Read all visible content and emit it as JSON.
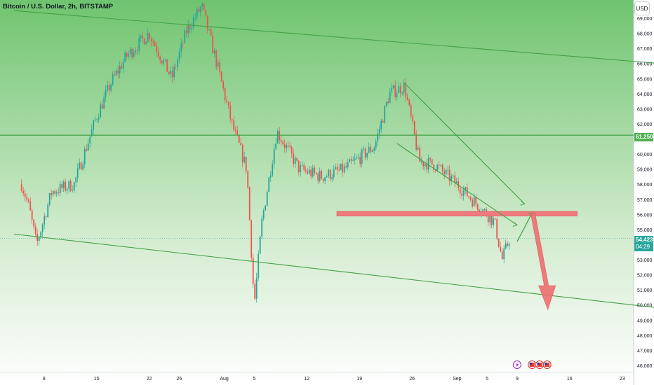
{
  "header": {
    "title": "Bitcoin / U.S. Dollar, 2h, BITSTAMP",
    "currency_button": "USD"
  },
  "price_tags": {
    "level": "61,250",
    "last_price": "54,423",
    "countdown": "04:29"
  },
  "colors": {
    "background_top": "#6fc46f",
    "background_bottom": "#ffffff",
    "up_candle": "#26a69a",
    "down_candle": "#ef5350",
    "trend_lines": "#43a047",
    "zone": "#ef7b80",
    "arrow": "#ef6f72"
  },
  "chart_data": {
    "type": "candlestick",
    "symbol": "Bitcoin / U.S. Dollar",
    "interval": "2h",
    "exchange": "BITSTAMP",
    "y_axis": {
      "position": "right",
      "range": [
        46000,
        70000
      ],
      "ticks": [
        "69,000",
        "68,000",
        "67,000",
        "66,000",
        "65,000",
        "64,000",
        "63,000",
        "62,000",
        "61,000",
        "60,000",
        "59,000",
        "58,000",
        "57,000",
        "56,000",
        "55,000",
        "54,000",
        "53,000",
        "52,000",
        "51,000",
        "50,000",
        "49,000",
        "48,000",
        "47,000",
        "46,000"
      ]
    },
    "x_axis": {
      "ticks": [
        "8",
        "15",
        "22",
        "26",
        "Aug",
        "5",
        "12",
        "19",
        "26",
        "Sep",
        "5",
        "9",
        "16",
        "23"
      ]
    },
    "price_path": [
      {
        "date": "2024-07-05",
        "close": 58000
      },
      {
        "date": "2024-07-06",
        "close": 56500
      },
      {
        "date": "2024-07-07",
        "close": 54000
      },
      {
        "date": "2024-07-09",
        "close": 57500
      },
      {
        "date": "2024-07-12",
        "close": 58000
      },
      {
        "date": "2024-07-15",
        "close": 62500
      },
      {
        "date": "2024-07-17",
        "close": 64800
      },
      {
        "date": "2024-07-19",
        "close": 66500
      },
      {
        "date": "2024-07-22",
        "close": 68000
      },
      {
        "date": "2024-07-25",
        "close": 65000
      },
      {
        "date": "2024-07-27",
        "close": 68200
      },
      {
        "date": "2024-07-29",
        "close": 69800
      },
      {
        "date": "2024-07-31",
        "close": 66000
      },
      {
        "date": "2024-08-02",
        "close": 62000
      },
      {
        "date": "2024-08-04",
        "close": 59000
      },
      {
        "date": "2024-08-05",
        "close": 50000
      },
      {
        "date": "2024-08-06",
        "close": 55500
      },
      {
        "date": "2024-08-08",
        "close": 61500
      },
      {
        "date": "2024-08-11",
        "close": 59000
      },
      {
        "date": "2024-08-14",
        "close": 58500
      },
      {
        "date": "2024-08-17",
        "close": 59000
      },
      {
        "date": "2024-08-21",
        "close": 60500
      },
      {
        "date": "2024-08-23",
        "close": 64000
      },
      {
        "date": "2024-08-25",
        "close": 64500
      },
      {
        "date": "2024-08-27",
        "close": 59500
      },
      {
        "date": "2024-08-29",
        "close": 59300
      },
      {
        "date": "2024-09-01",
        "close": 58000
      },
      {
        "date": "2024-09-03",
        "close": 57000
      },
      {
        "date": "2024-09-06",
        "close": 55500
      },
      {
        "date": "2024-09-07",
        "close": 53000
      },
      {
        "date": "2024-09-08",
        "close": 54423
      }
    ],
    "horizontal_levels": [
      61250
    ],
    "last_price": 54423,
    "drawings": [
      {
        "kind": "channel-top-line",
        "from": {
          "date": "2024-07-04",
          "price": 69500
        },
        "to": {
          "date": "2024-09-28",
          "price": 66000
        }
      },
      {
        "kind": "channel-bottom-line",
        "from": {
          "date": "2024-07-04",
          "price": 54700
        },
        "to": {
          "date": "2024-09-28",
          "price": 49800
        }
      },
      {
        "kind": "resistance-zone",
        "from_date": "2024-08-16",
        "to_date": "2024-09-17",
        "price_low": 55900,
        "price_high": 56200
      },
      {
        "kind": "wedge-upper",
        "from": {
          "date": "2024-08-25",
          "price": 64700
        },
        "to": {
          "date": "2024-09-10",
          "price": 56700
        }
      },
      {
        "kind": "wedge-lower",
        "from": {
          "date": "2024-08-24",
          "price": 60700
        },
        "to": {
          "date": "2024-09-09",
          "price": 55300
        }
      },
      {
        "kind": "projection-up",
        "from": {
          "date": "2024-09-09",
          "price": 54200
        },
        "to": {
          "date": "2024-09-11",
          "price": 56100
        }
      },
      {
        "kind": "projection-down",
        "from": {
          "date": "2024-09-11",
          "price": 56100
        },
        "to": {
          "date": "2024-09-13",
          "price": 49700
        }
      }
    ],
    "events": [
      {
        "kind": "lightning",
        "date": "2024-09-09"
      },
      {
        "kind": "us-flag",
        "date": "2024-09-11"
      },
      {
        "kind": "us-flag",
        "date": "2024-09-12"
      },
      {
        "kind": "us-flag",
        "date": "2024-09-13"
      }
    ],
    "background": "gradient green to white"
  }
}
